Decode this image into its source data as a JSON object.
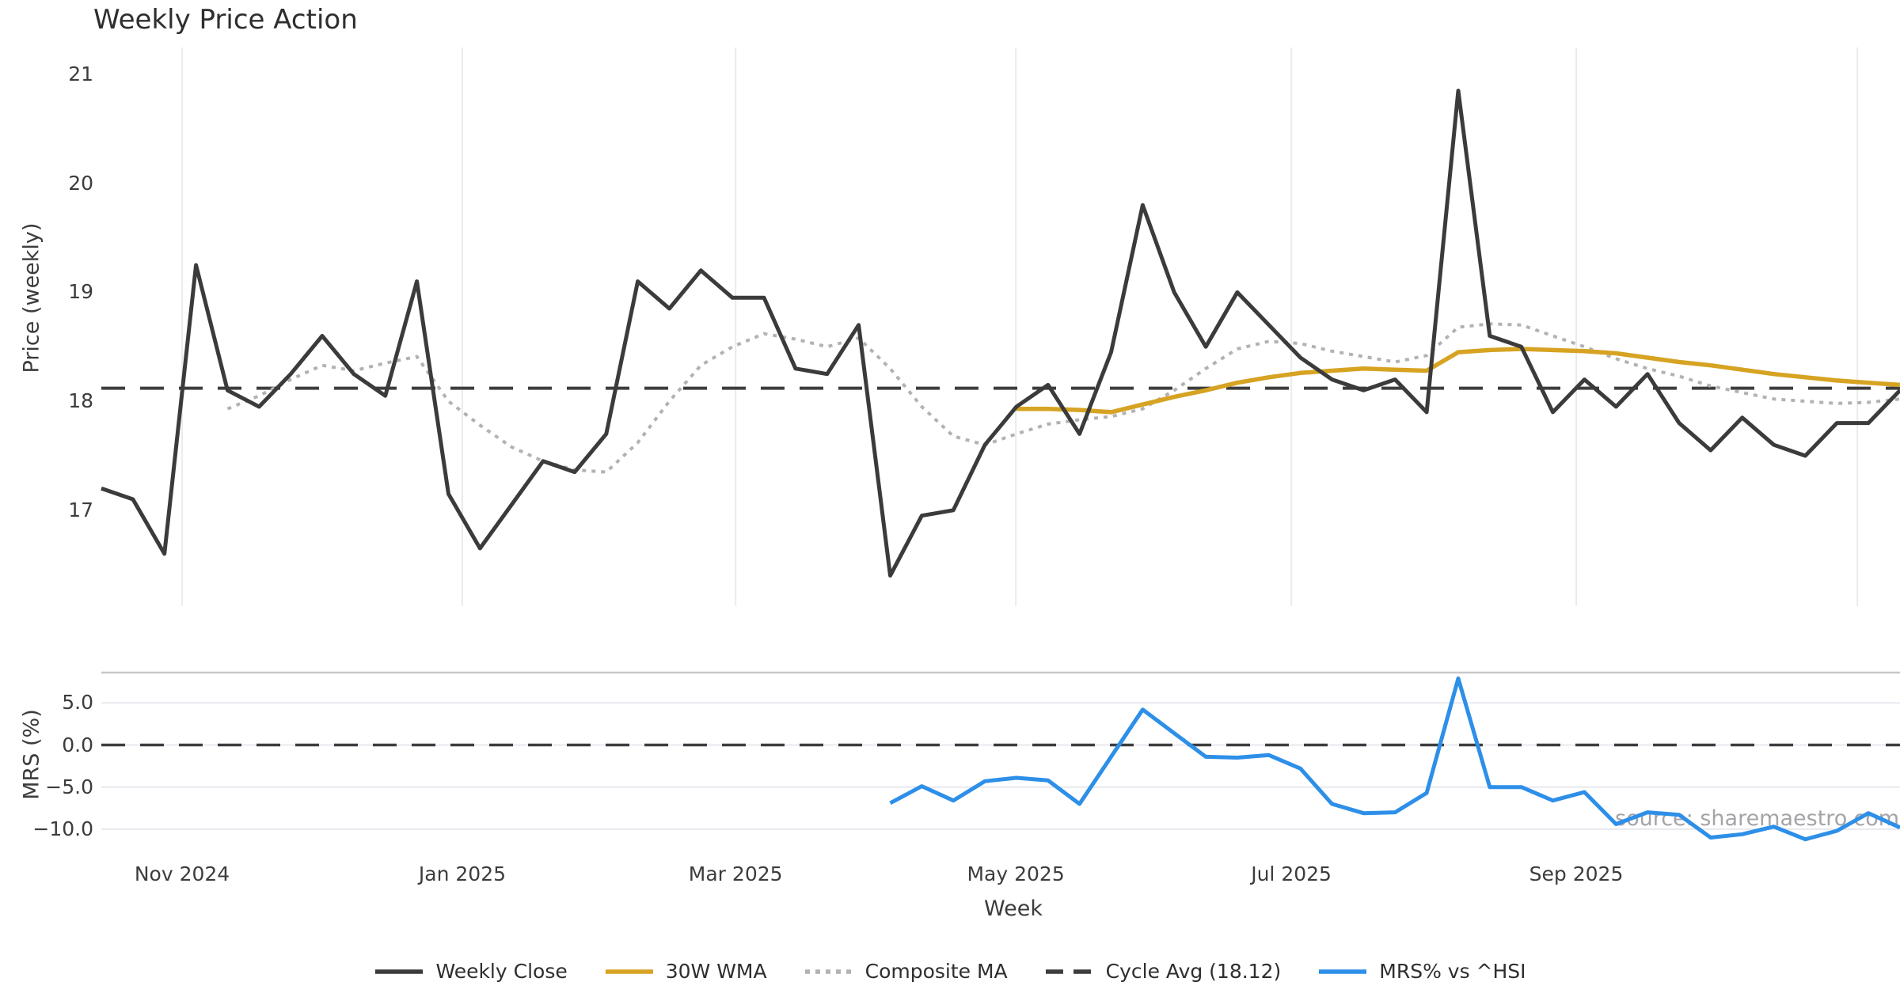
{
  "title": "Weekly Price Action",
  "watermark": "source: sharemaestro.com",
  "colors": {
    "weekly_close": "#3b3b3b",
    "wma_30w": "#d6a322",
    "composite_ma": "#b2b2b2",
    "cycle_avg": "#3d3d3d",
    "mrs": "#2d8fe8",
    "grid_vertical": "#ebebeb",
    "grid_horizontal_lower": "#e8e8f0",
    "panel_border": "#c8c8c8",
    "text": "#3c3c3c",
    "watermark_color": "#95959a"
  },
  "chart_data": {
    "type": "line",
    "title": "Weekly Price Action",
    "xlabel": "Week",
    "n_points": 58,
    "x_ticks": [
      {
        "label": "Nov 2024",
        "x_week": 2.56
      },
      {
        "label": "Jan 2025",
        "x_week": 11.44
      },
      {
        "label": "Mar 2025",
        "x_week": 20.1
      },
      {
        "label": "May 2025",
        "x_week": 28.98
      },
      {
        "label": "Jul 2025",
        "x_week": 37.71
      },
      {
        "label": "Sep 2025",
        "x_week": 46.74
      },
      {
        "label": "",
        "x_week": 55.65
      }
    ],
    "panels": [
      {
        "name": "price",
        "ylabel": "Price (weekly)",
        "ylim": [
          16.2,
          21.25
        ],
        "yticks": [
          {
            "label": "21",
            "value": 21
          },
          {
            "label": "20",
            "value": 20
          },
          {
            "label": "19",
            "value": 19
          },
          {
            "label": "18",
            "value": 18
          },
          {
            "label": "17",
            "value": 17
          }
        ],
        "reference_line": {
          "name": "Cycle Avg",
          "value": 18.12,
          "style": "dashed"
        },
        "series": [
          {
            "name": "Weekly Close",
            "style": "solid",
            "color_key": "weekly_close",
            "start_week": 0,
            "values": [
              17.2,
              17.1,
              16.6,
              19.25,
              18.1,
              17.95,
              18.25,
              18.6,
              18.25,
              18.05,
              19.1,
              17.15,
              16.65,
              17.05,
              17.45,
              17.35,
              17.7,
              19.1,
              18.85,
              19.2,
              18.95,
              18.95,
              18.3,
              18.25,
              18.7,
              16.4,
              16.95,
              17.0,
              17.6,
              17.95,
              18.15,
              17.7,
              18.45,
              19.8,
              19.0,
              18.5,
              19.0,
              18.7,
              18.4,
              18.2,
              18.1,
              18.2,
              17.9,
              20.85,
              18.6,
              18.5,
              17.9,
              18.2,
              17.95,
              18.25,
              17.8,
              17.55,
              17.85,
              17.6,
              17.5,
              17.8,
              17.8,
              18.1
            ]
          },
          {
            "name": "30W WMA",
            "style": "solid",
            "color_key": "wma_30w",
            "start_week": 29,
            "values": [
              17.93,
              17.93,
              17.92,
              17.9,
              17.97,
              18.04,
              18.1,
              18.17,
              18.22,
              18.26,
              18.28,
              18.3,
              18.29,
              18.28,
              18.45,
              18.47,
              18.48,
              18.47,
              18.46,
              18.44,
              18.4,
              18.36,
              18.33,
              18.29,
              18.25,
              18.22,
              18.19,
              18.17,
              18.15
            ]
          },
          {
            "name": "Composite MA",
            "style": "dotted",
            "color_key": "composite_ma",
            "start_week": 4,
            "values": [
              17.93,
              18.05,
              18.2,
              18.33,
              18.28,
              18.35,
              18.41,
              18.0,
              17.78,
              17.58,
              17.45,
              17.37,
              17.35,
              17.62,
              18.0,
              18.33,
              18.5,
              18.62,
              18.57,
              18.5,
              18.58,
              18.3,
              17.95,
              17.68,
              17.6,
              17.7,
              17.79,
              17.83,
              17.86,
              17.93,
              18.1,
              18.3,
              18.48,
              18.55,
              18.53,
              18.46,
              18.41,
              18.36,
              18.42,
              18.68,
              18.71,
              18.7,
              18.6,
              18.5,
              18.39,
              18.3,
              18.23,
              18.14,
              18.08,
              18.02,
              18.0,
              17.98,
              17.99,
              18.02
            ]
          }
        ]
      },
      {
        "name": "mrs",
        "ylabel": "MRS (%)",
        "ylim": [
          -11.4,
          8.6
        ],
        "yticks": [
          {
            "label": "5.0",
            "value": 5
          },
          {
            "label": "0.0",
            "value": 0
          },
          {
            "label": "−5.0",
            "value": -5
          },
          {
            "label": "−10.0",
            "value": -10
          }
        ],
        "reference_line": {
          "name": "Zero",
          "value": 0.0,
          "style": "dashed"
        },
        "series": [
          {
            "name": "MRS% vs ^HSI",
            "style": "solid",
            "color_key": "mrs",
            "start_week": 25,
            "values": [
              -6.9,
              -4.9,
              -6.6,
              -4.3,
              -3.9,
              -4.2,
              -7.0,
              -1.4,
              4.2,
              1.4,
              -1.4,
              -1.5,
              -1.2,
              -2.8,
              -7.0,
              -8.1,
              -8.0,
              -5.7,
              7.9,
              -5.0,
              -5.0,
              -6.6,
              -5.6,
              -9.4,
              -8.0,
              -8.3,
              -11.0,
              -10.6,
              -9.7,
              -11.2,
              -10.2,
              -8.1,
              -9.8
            ]
          }
        ]
      }
    ],
    "legend": {
      "items": [
        {
          "label": "Weekly Close",
          "style": "solid",
          "color_key": "weekly_close"
        },
        {
          "label": "30W WMA",
          "style": "solid",
          "color_key": "wma_30w"
        },
        {
          "label": "Composite MA",
          "style": "dotted",
          "color_key": "composite_ma"
        },
        {
          "label": "Cycle Avg (18.12)",
          "style": "dashed",
          "color_key": "cycle_avg"
        },
        {
          "label": "MRS% vs ^HSI",
          "style": "solid",
          "color_key": "mrs"
        }
      ],
      "position": "bottom-center"
    },
    "grid": {
      "vertical_main": true,
      "horizontal_lower": true
    }
  }
}
